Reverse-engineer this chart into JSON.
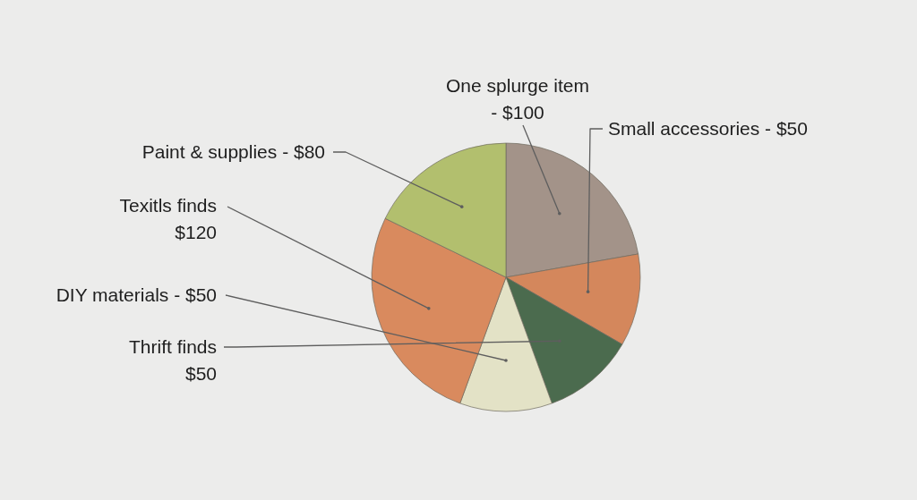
{
  "chart_data": {
    "type": "pie",
    "categories": [
      "One splurge item - $100",
      "Small accessories - $50",
      "Thrift finds $50",
      "DIY materials - $50",
      "Texitls finds $120",
      "Paint & supplies - $80"
    ],
    "values": [
      100,
      50,
      50,
      50,
      120,
      80
    ],
    "colors": [
      "#a39389",
      "#d4875c",
      "#4b6b4e",
      "#e3e2c6",
      "#d98a5e",
      "#b2bf6e"
    ]
  }
}
